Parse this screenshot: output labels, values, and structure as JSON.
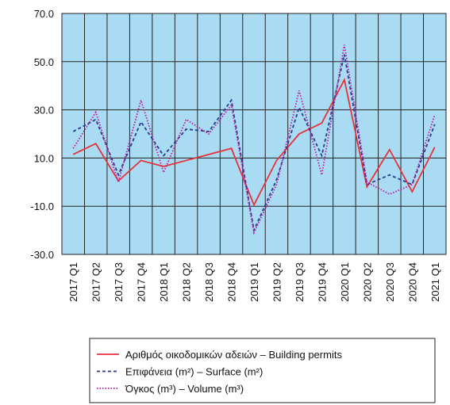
{
  "chart_data": {
    "type": "line",
    "categories": [
      "2017 Q1",
      "2017 Q2",
      "2017 Q3",
      "2017 Q4",
      "2018 Q1",
      "2018 Q2",
      "2018 Q3",
      "2018 Q4",
      "2019 Q1",
      "2019 Q2",
      "2019 Q3",
      "2019 Q4",
      "2020 Q1",
      "2020 Q2",
      "2020 Q3",
      "2020 Q4",
      "2021 Q1"
    ],
    "series": [
      {
        "name": "Αριθμός οικοδομικών αδειών – Building permits",
        "color": "#e8313a",
        "dash": "solid",
        "values": [
          11.5,
          16,
          0.5,
          9,
          6.5,
          9,
          11.5,
          14,
          -9.5,
          9,
          20,
          24.5,
          42.5,
          -2,
          13.5,
          -4,
          14.5
        ]
      },
      {
        "name": "Επιφάνεια (m²) – Surface (m²)",
        "color": "#2a3a8c",
        "dash": "dashed",
        "values": [
          21,
          26,
          3,
          25,
          11,
          22,
          21,
          34,
          -20,
          1,
          31,
          11,
          53,
          -1,
          3,
          -1,
          24
        ]
      },
      {
        "name": "Όγκος (m³) – Volume (m³)",
        "color": "#c0189e",
        "dash": "dotted",
        "values": [
          14,
          29,
          0,
          34,
          4,
          26,
          20,
          32,
          -21,
          -1,
          38,
          3,
          57,
          0,
          -5,
          -1,
          28
        ]
      }
    ],
    "ylim": [
      -30,
      70
    ],
    "yticks": [
      {
        "value": -30,
        "label": "-30.0"
      },
      {
        "value": -10,
        "label": "-10.0"
      },
      {
        "value": 10,
        "label": "10.0"
      },
      {
        "value": 30,
        "label": "30.0"
      },
      {
        "value": 50,
        "label": "50.0"
      },
      {
        "value": 70,
        "label": "70.0"
      }
    ],
    "grid": true,
    "background": "#a9dcf3"
  }
}
